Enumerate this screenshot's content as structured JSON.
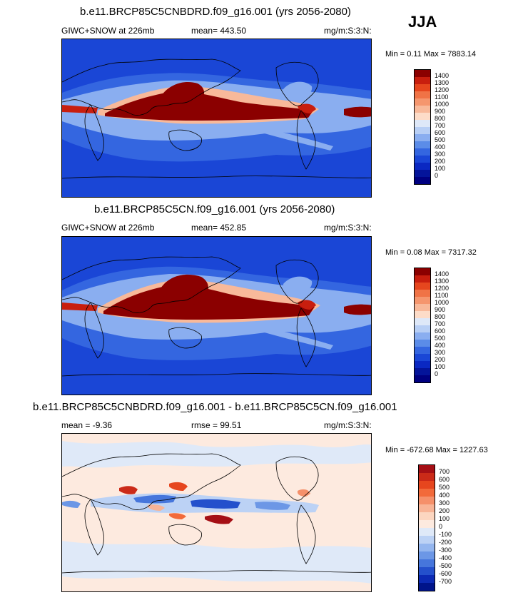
{
  "season": "JJA",
  "panels": [
    {
      "title": "b.e11.BRCP85C5CNBDRD.f09_g16.001 (yrs 2056-2080)",
      "field": "GIWC+SNOW at 226mb",
      "stat": "mean= 443.50",
      "units": "mg/m:S:3:N:",
      "minmax": "Min =  0.11 Max = 7883.14",
      "levels": [
        "1400",
        "1300",
        "1200",
        "1100",
        "1000",
        "900",
        "800",
        "700",
        "600",
        "500",
        "400",
        "300",
        "200",
        "100",
        "0"
      ],
      "colors": [
        "#8b0000",
        "#c81e0e",
        "#e6461e",
        "#f07346",
        "#f5966e",
        "#f8b99a",
        "#fddcc8",
        "#dee8f8",
        "#b8cff5",
        "#8aaef0",
        "#5b8ce8",
        "#3466e0",
        "#1a46d6",
        "#0a28c2",
        "#04149a",
        "#000080"
      ]
    },
    {
      "title": "b.e11.BRCP85C5CN.f09_g16.001 (yrs 2056-2080)",
      "field": "GIWC+SNOW at 226mb",
      "stat": "mean= 452.85",
      "units": "mg/m:S:3:N:",
      "minmax": "Min =  0.08 Max = 7317.32",
      "levels": [
        "1400",
        "1300",
        "1200",
        "1100",
        "1000",
        "900",
        "800",
        "700",
        "600",
        "500",
        "400",
        "300",
        "200",
        "100",
        "0"
      ],
      "colors": [
        "#8b0000",
        "#c81e0e",
        "#e6461e",
        "#f07346",
        "#f5966e",
        "#f8b99a",
        "#fddcc8",
        "#dee8f8",
        "#b8cff5",
        "#8aaef0",
        "#5b8ce8",
        "#3466e0",
        "#1a46d6",
        "#0a28c2",
        "#04149a",
        "#000080"
      ]
    },
    {
      "title": "b.e11.BRCP85C5CNBDRD.f09_g16.001 - b.e11.BRCP85C5CN.f09_g16.001",
      "stat_left": "mean =  -9.36",
      "stat_mid": "rmse =  99.51",
      "units": "mg/m:S:3:N:",
      "minmax": "Min = -672.68 Max = 1227.63",
      "levels": [
        "700",
        "600",
        "500",
        "400",
        "300",
        "200",
        "100",
        "0",
        "-100",
        "-200",
        "-300",
        "-400",
        "-500",
        "-600",
        "-700"
      ],
      "colors": [
        "#a50f15",
        "#cb2a18",
        "#e6461e",
        "#f26a3a",
        "#f5906a",
        "#f8b496",
        "#fcd6c0",
        "#fdeadf",
        "#dfe9f8",
        "#bcd2f5",
        "#94b6ef",
        "#6c97e6",
        "#4676dc",
        "#2450cc",
        "#0c2ab4",
        "#00148a"
      ]
    }
  ]
}
